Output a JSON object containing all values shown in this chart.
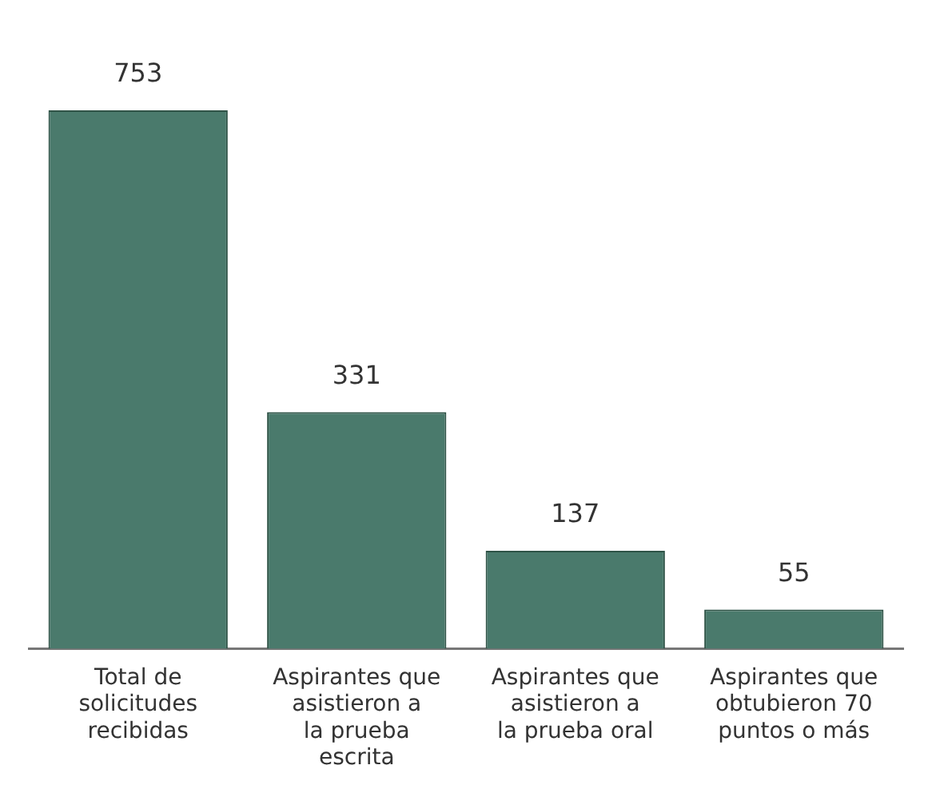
{
  "chart_data": {
    "type": "bar",
    "categories": [
      "Total de solicitudes recibidas",
      "Aspirantes que asistieron a la prueba escrita",
      "Aspirantes que asistieron a la prueba oral",
      "Aspirantes que obtubieron 70 puntos o más"
    ],
    "values": [
      753,
      331,
      137,
      55
    ],
    "color": "#4a7a6c",
    "data_labels": true,
    "grid": false,
    "legend": false
  }
}
